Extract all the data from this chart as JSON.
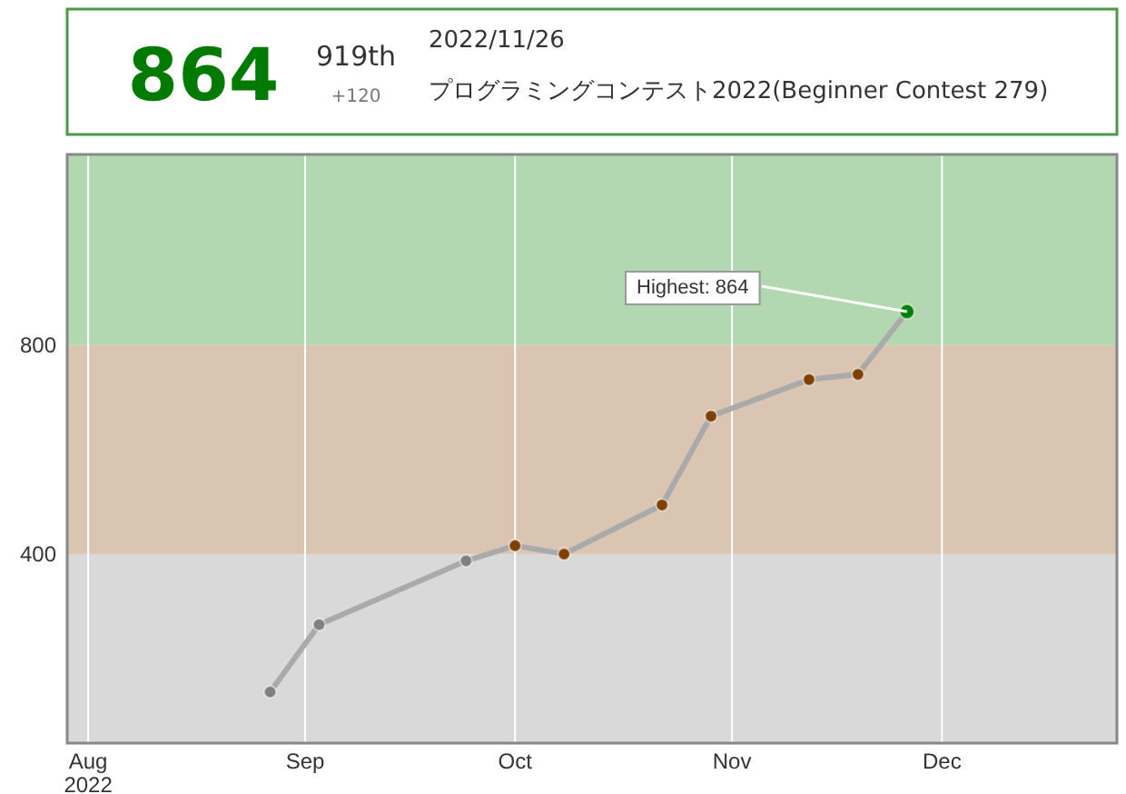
{
  "chart_data": {
    "type": "line",
    "annotations": [
      "864",
      "919th",
      "+120",
      "2022/11/26",
      "プログラミングコンテスト2022(Beginner Contest 279)",
      {
        "text": "Highest: 864",
        "x": "2022-11-26",
        "y": 864
      }
    ],
    "x": [
      "2022-08-27",
      "2022-09-03",
      "2022-09-24",
      "2022-10-01",
      "2022-10-08",
      "2022-10-22",
      "2022-10-29",
      "2022-11-12",
      "2022-11-19",
      "2022-11-26"
    ],
    "series": [
      {
        "color": "#aaaaaa",
        "values": [
          136,
          265,
          387,
          416,
          400,
          494,
          664,
          734,
          744,
          864
        ],
        "colors": [
          "#808080",
          "#808080",
          "#808080",
          "#804000",
          "#804000",
          "#804000",
          "#804000",
          "#804000",
          "#804000",
          "#008000"
        ]
      }
    ],
    "xlim": [
      "2022-07-29",
      "2022-12-26"
    ],
    "xticks": [
      {
        "value": "2022-08-01",
        "label": "Aug\n2022"
      },
      {
        "value": "2022-09-01",
        "label": "Sep"
      },
      {
        "value": "2022-10-01",
        "label": "Oct"
      },
      {
        "value": "2022-11-01",
        "label": "Nov"
      },
      {
        "value": "2022-12-01",
        "label": "Dec"
      }
    ],
    "ylim": [
      38,
      1165
    ],
    "yticks": [
      400,
      800
    ],
    "bands": [
      {
        "axis": "y",
        "from": 38,
        "to": 400,
        "color": "#d9d9d9"
      },
      {
        "axis": "y",
        "from": 400,
        "to": 800,
        "color": "#d9c5b2"
      },
      {
        "axis": "y",
        "from": 800,
        "to": 1165,
        "color": "#b2d8b2"
      }
    ],
    "grid": "x",
    "marker": "circle",
    "line_style": "solid"
  }
}
